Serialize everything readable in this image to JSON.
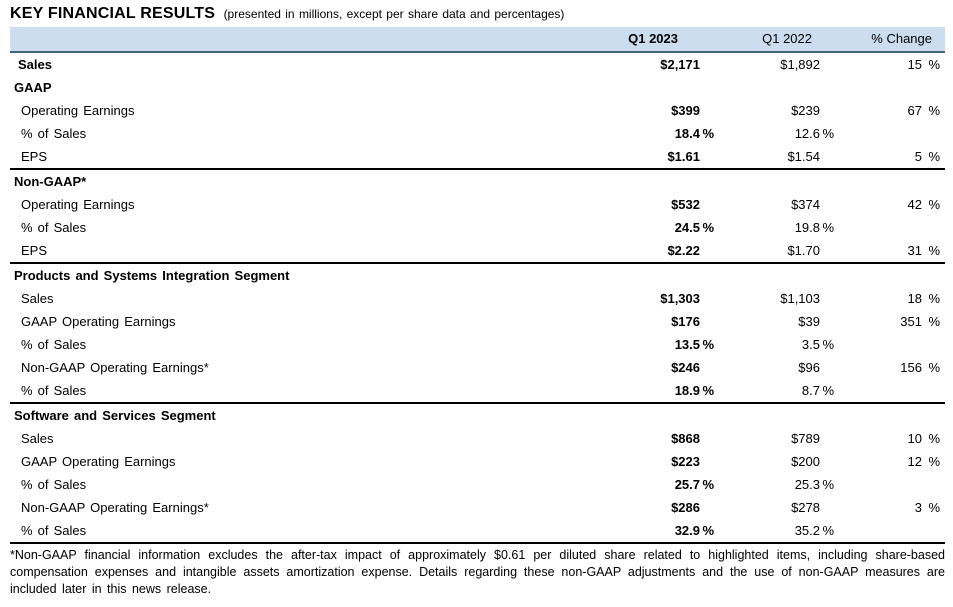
{
  "header": {
    "title": "KEY FINANCIAL RESULTS",
    "subtitle": "(presented in millions, except per share data and percentages)"
  },
  "colors": {
    "header_bg": "#cdddf0",
    "header_border": "#44647c",
    "section_border": "#000000"
  },
  "table": {
    "columns": [
      "Q1 2023",
      "Q1 2022",
      "% Change"
    ],
    "rows": [
      {
        "type": "data",
        "bold": true,
        "label": "Sales",
        "c1": "$2,171",
        "c1s": "",
        "c2": "$1,892",
        "c2s": "",
        "c3": "15",
        "c3s": "%"
      },
      {
        "type": "section",
        "label": "GAAP"
      },
      {
        "type": "data",
        "label": "Operating Earnings",
        "c1": "$399",
        "c1s": "",
        "c2": "$239",
        "c2s": "",
        "c3": "67",
        "c3s": "%"
      },
      {
        "type": "data",
        "label": "% of Sales",
        "c1": "18.4",
        "c1s": "%",
        "c2": "12.6",
        "c2s": "%",
        "c3": "",
        "c3s": ""
      },
      {
        "type": "data",
        "label": "EPS",
        "c1": "$1.61",
        "c1s": "",
        "c2": "$1.54",
        "c2s": "",
        "c3": "5",
        "c3s": "%"
      },
      {
        "type": "section",
        "top_border": true,
        "label": "Non-GAAP*"
      },
      {
        "type": "data",
        "label": "Operating Earnings",
        "c1": "$532",
        "c1s": "",
        "c2": "$374",
        "c2s": "",
        "c3": "42",
        "c3s": "%"
      },
      {
        "type": "data",
        "label": "% of Sales",
        "c1": "24.5",
        "c1s": "%",
        "c2": "19.8",
        "c2s": "%",
        "c3": "",
        "c3s": ""
      },
      {
        "type": "data",
        "label": "EPS",
        "c1": "$2.22",
        "c1s": "",
        "c2": "$1.70",
        "c2s": "",
        "c3": "31",
        "c3s": "%"
      },
      {
        "type": "section",
        "top_border": true,
        "label": "Products and Systems Integration Segment"
      },
      {
        "type": "data",
        "label": "Sales",
        "c1": "$1,303",
        "c1s": "",
        "c2": "$1,103",
        "c2s": "",
        "c3": "18",
        "c3s": "%"
      },
      {
        "type": "data",
        "label": "GAAP Operating Earnings",
        "c1": "$176",
        "c1s": "",
        "c2": "$39",
        "c2s": "",
        "c3": "351",
        "c3s": "%"
      },
      {
        "type": "data",
        "label": "% of Sales",
        "c1": "13.5",
        "c1s": "%",
        "c2": "3.5",
        "c2s": "%",
        "c3": "",
        "c3s": ""
      },
      {
        "type": "data",
        "label": "Non-GAAP Operating Earnings*",
        "c1": "$246",
        "c1s": "",
        "c2": "$96",
        "c2s": "",
        "c3": "156",
        "c3s": "%"
      },
      {
        "type": "data",
        "label": "% of Sales",
        "c1": "18.9",
        "c1s": "%",
        "c2": "8.7",
        "c2s": "%",
        "c3": "",
        "c3s": ""
      },
      {
        "type": "section",
        "top_border": true,
        "label": "Software and Services Segment"
      },
      {
        "type": "data",
        "label": "Sales",
        "c1": "$868",
        "c1s": "",
        "c2": "$789",
        "c2s": "",
        "c3": "10",
        "c3s": "%"
      },
      {
        "type": "data",
        "label": "GAAP Operating Earnings",
        "c1": "$223",
        "c1s": "",
        "c2": "$200",
        "c2s": "",
        "c3": "12",
        "c3s": "%"
      },
      {
        "type": "data",
        "label": "% of Sales",
        "c1": "25.7",
        "c1s": "%",
        "c2": "25.3",
        "c2s": "%",
        "c3": "",
        "c3s": ""
      },
      {
        "type": "data",
        "label": "Non-GAAP Operating Earnings*",
        "c1": "$286",
        "c1s": "",
        "c2": "$278",
        "c2s": "",
        "c3": "3",
        "c3s": "%"
      },
      {
        "type": "data",
        "label": "% of Sales",
        "c1": "32.9",
        "c1s": "%",
        "c2": "35.2",
        "c2s": "%",
        "c3": "",
        "c3s": ""
      }
    ]
  },
  "footnote": "*Non-GAAP financial information excludes the after-tax impact of approximately $0.61 per diluted share related to highlighted items, including share-based compensation expenses and intangible assets amortization expense. Details regarding these non-GAAP adjustments and the use of non-GAAP measures are included later in this news release."
}
